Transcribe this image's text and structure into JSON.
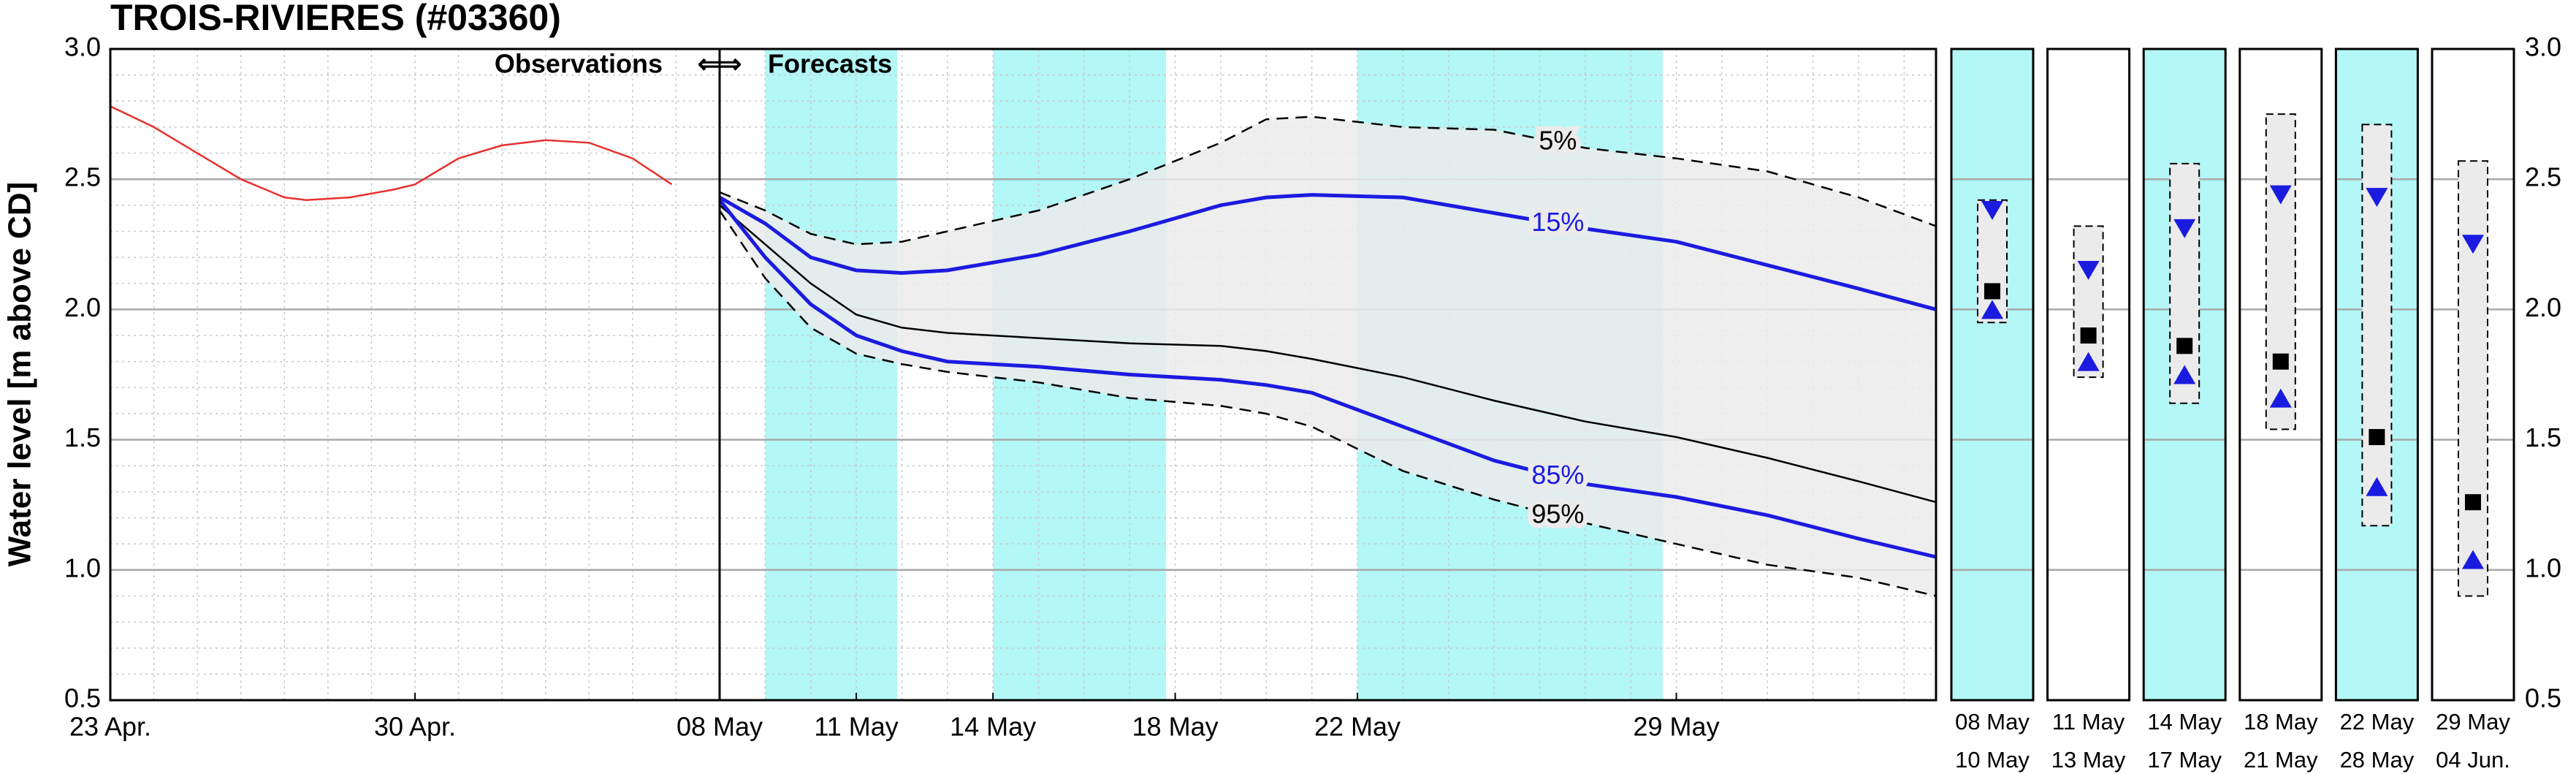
{
  "chart_data": [
    {
      "type": "line",
      "title": "TROIS-RIVIERES (#03360)",
      "y_label": "Water level [m above CD]",
      "x": [
        0,
        1,
        2,
        3,
        4,
        4.5,
        5.5,
        6.5,
        7,
        8,
        9,
        10,
        11,
        12,
        12.9
      ],
      "series": [
        {
          "color": "#e8312f",
          "values": [
            2.78,
            2.7,
            2.6,
            2.5,
            2.43,
            2.42,
            2.43,
            2.46,
            2.48,
            2.58,
            2.63,
            2.65,
            2.64,
            2.58,
            2.48
          ]
        }
      ],
      "xlim": [
        0,
        14
      ],
      "xticks": [
        {
          "value": 0,
          "label": "23 Apr."
        },
        {
          "value": 7,
          "label": "30 Apr."
        }
      ],
      "ylim": [
        0.5,
        3.0
      ],
      "yticks": [
        0.5,
        {
          "value": 1,
          "label": "1.0"
        },
        1.5,
        {
          "value": 2,
          "label": "2.0"
        },
        2.5,
        {
          "value": 3,
          "label": "3.0"
        }
      ],
      "grid": true
    },
    {
      "type": "fan",
      "annotation": [
        "Observations",
        "⇐⇒",
        "Forecasts"
      ],
      "x": [
        15,
        16,
        17,
        18,
        19,
        20,
        22,
        24,
        26,
        27,
        28,
        30,
        32,
        34,
        36,
        38,
        40,
        41.7
      ],
      "series": [
        {
          "name": "5%",
          "color": "#000000",
          "dashed": true,
          "values": [
            2.45,
            2.38,
            2.29,
            2.25,
            2.26,
            2.3,
            2.38,
            2.5,
            2.64,
            2.73,
            2.74,
            2.7,
            2.69,
            2.62,
            2.58,
            2.53,
            2.43,
            2.32
          ]
        },
        {
          "name": "15%",
          "color": "#1b1be0",
          "dashed": false,
          "values": [
            2.43,
            2.33,
            2.2,
            2.15,
            2.14,
            2.15,
            2.21,
            2.3,
            2.4,
            2.43,
            2.44,
            2.43,
            2.37,
            2.31,
            2.26,
            2.17,
            2.08,
            2.0
          ]
        },
        {
          "color": "#000000",
          "dashed": false,
          "values": [
            2.4,
            2.25,
            2.1,
            1.98,
            1.93,
            1.91,
            1.89,
            1.87,
            1.86,
            1.84,
            1.81,
            1.74,
            1.65,
            1.57,
            1.51,
            1.43,
            1.34,
            1.26
          ]
        },
        {
          "name": "85%",
          "color": "#1b1be0",
          "dashed": false,
          "values": [
            2.42,
            2.2,
            2.02,
            1.9,
            1.84,
            1.8,
            1.78,
            1.75,
            1.73,
            1.71,
            1.68,
            1.55,
            1.42,
            1.33,
            1.28,
            1.21,
            1.12,
            1.05
          ]
        },
        {
          "name": "95%",
          "color": "#000000",
          "dashed": true,
          "values": [
            2.38,
            2.12,
            1.93,
            1.83,
            1.79,
            1.76,
            1.72,
            1.66,
            1.63,
            1.6,
            1.55,
            1.38,
            1.27,
            1.18,
            1.1,
            1.02,
            0.97,
            0.9
          ]
        }
      ],
      "fill_between": [
        0,
        4
      ],
      "fill_color": "#ebebeb",
      "shaded_periods": [
        [
          16,
          18.9
        ],
        [
          21,
          24.8
        ],
        [
          29,
          35.7
        ]
      ],
      "shade_color": "#b3f7f7",
      "xlim": [
        15,
        41.7
      ],
      "xticks": [
        {
          "value": 15,
          "label": "08 May"
        },
        {
          "value": 18,
          "label": "11 May"
        },
        {
          "value": 21,
          "label": "14 May"
        },
        {
          "value": 25,
          "label": "18 May"
        },
        {
          "value": 29,
          "label": "22 May"
        },
        {
          "value": 36,
          "label": "29 May"
        }
      ],
      "ylim": [
        0.5,
        3.0
      ],
      "grid": true
    },
    {
      "type": "box",
      "period_start": [
        "08 May",
        "11 May",
        "14 May",
        "18 May",
        "22 May",
        "29 May"
      ],
      "period_end": [
        "10 May",
        "13 May",
        "17 May",
        "21 May",
        "28 May",
        "04 Jun."
      ],
      "shaded": [
        true,
        false,
        true,
        false,
        true,
        false
      ],
      "box_top": [
        2.42,
        2.32,
        2.56,
        2.75,
        2.71,
        2.57
      ],
      "box_bottom": [
        1.95,
        1.74,
        1.64,
        1.54,
        1.17,
        0.9
      ],
      "square": [
        2.07,
        1.9,
        1.86,
        1.8,
        1.51,
        1.26
      ],
      "down_triangle": [
        2.38,
        2.15,
        2.31,
        2.44,
        2.43,
        2.25
      ],
      "up_triangle": [
        2.0,
        1.8,
        1.75,
        1.66,
        1.32,
        1.04
      ],
      "marker_color": "#1b1be0",
      "square_color": "#000000",
      "box_fill": "#ebebeb",
      "shade_color": "#b3f7f7",
      "ylim": [
        0.5,
        3.0
      ],
      "yticks": [
        0.5,
        {
          "value": 1,
          "label": "1.0"
        },
        1.5,
        {
          "value": 2,
          "label": "2.0"
        },
        2.5,
        {
          "value": 3,
          "label": "3.0"
        }
      ]
    }
  ]
}
